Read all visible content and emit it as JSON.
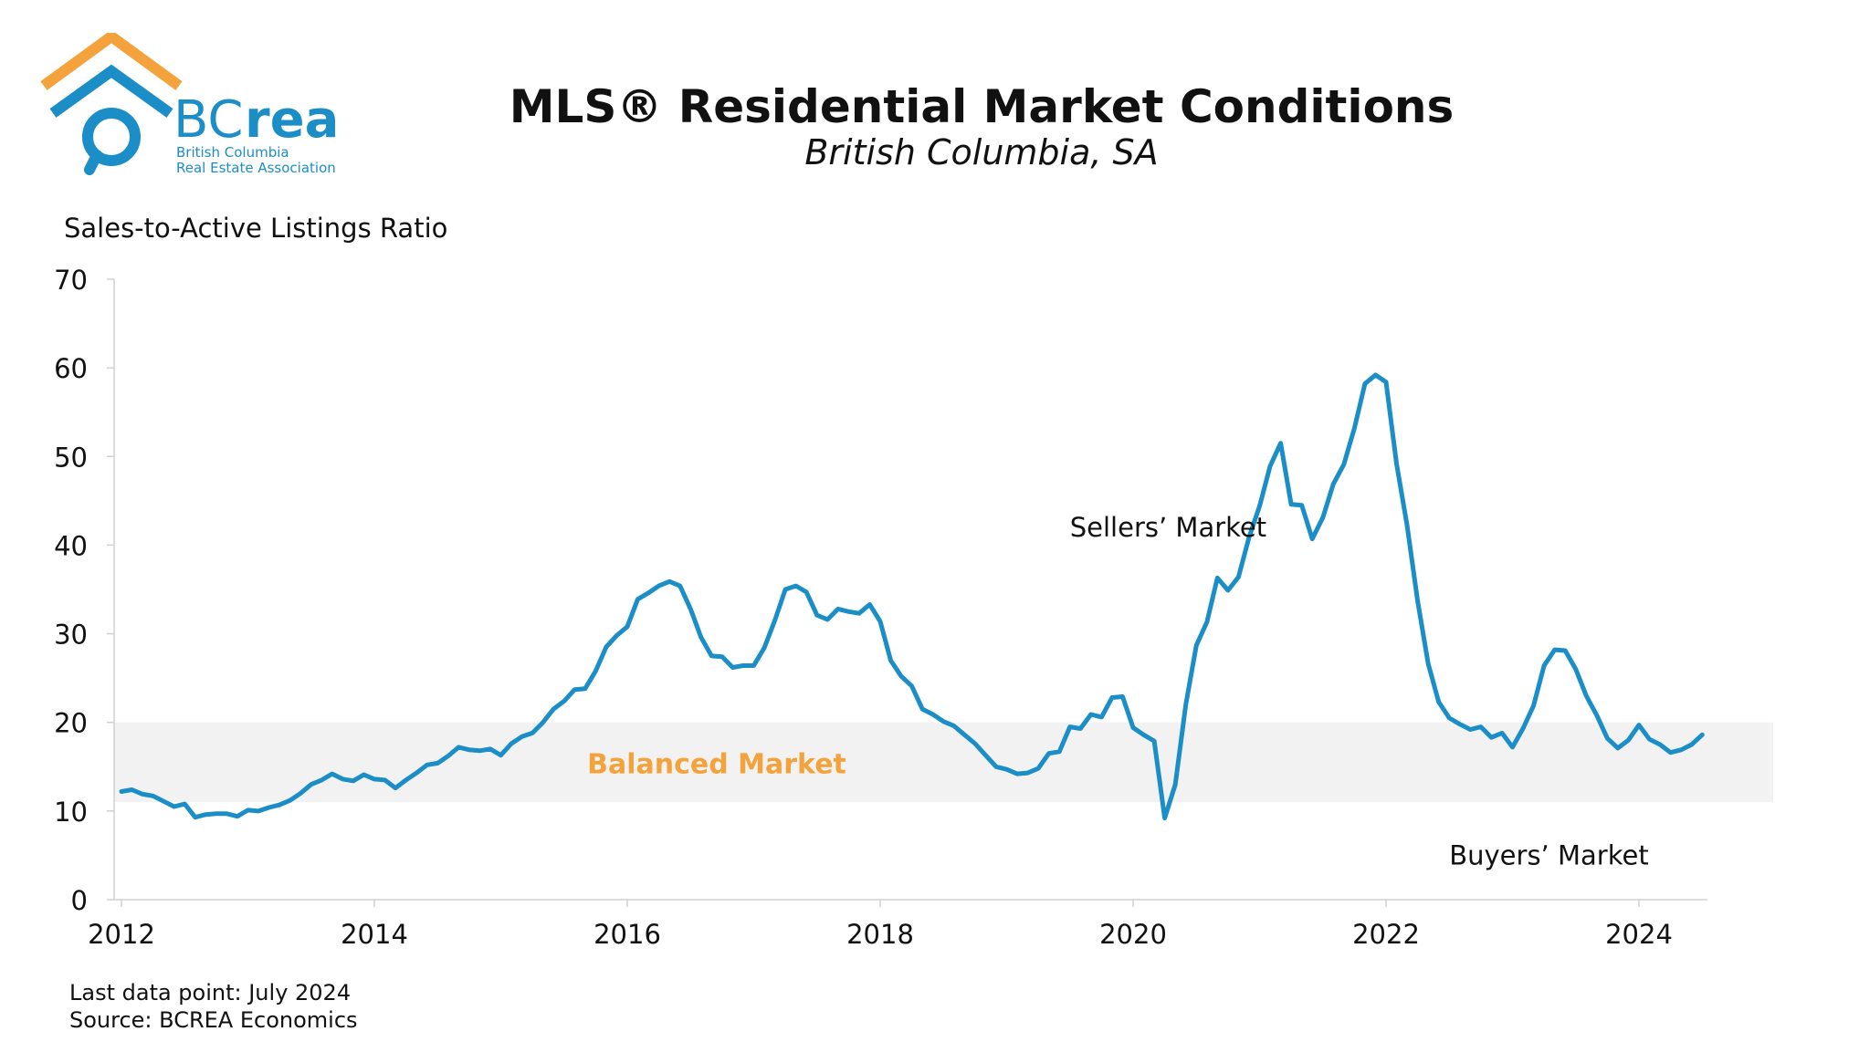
{
  "logo": {
    "brand_bc": "BC",
    "brand_rea": "rea",
    "line1": "British Columbia",
    "line2": "Real Estate Association",
    "colors": {
      "roof": "#f4a23b",
      "house": "#1b8ec8",
      "text": "#1b8ec8"
    },
    "icon": "house-speech-bubble-icon"
  },
  "footer": {
    "last_data_point": "Last data point: July 2024",
    "source": "Source: BCREA Economics"
  },
  "chart_data": {
    "type": "line",
    "title": "MLS® Residential Market Conditions",
    "subtitle": "British Columbia, SA",
    "ylabel": "Sales-to-Active Listings Ratio",
    "xlabel": "",
    "ylim": [
      0,
      70
    ],
    "yticks": [
      0,
      10,
      20,
      30,
      40,
      50,
      60,
      70
    ],
    "xlim": [
      2012,
      2024.75
    ],
    "xticks": [
      "2012",
      "2014",
      "2016",
      "2018",
      "2020",
      "2022",
      "2024"
    ],
    "grid": false,
    "band": {
      "label": "Balanced Market",
      "range": [
        11,
        20
      ],
      "color": "#f2f2f2",
      "label_color": "#f4a23b"
    },
    "annotations": [
      {
        "text": "Sellers’ Market",
        "x": 2019.5,
        "y": 42
      },
      {
        "text": "Buyers’ Market",
        "x": 2022.5,
        "y": 5
      }
    ],
    "line_color": "#1b8ec8",
    "series": [
      {
        "x_start": "2012-01",
        "frequency": "monthly",
        "values": [
          12.2,
          12.4,
          11.9,
          11.7,
          11.1,
          10.5,
          10.8,
          9.3,
          9.6,
          9.7,
          9.7,
          9.4,
          10.1,
          10.0,
          10.4,
          10.7,
          11.2,
          12.0,
          13.0,
          13.5,
          14.2,
          13.6,
          13.4,
          14.1,
          13.6,
          13.5,
          12.6,
          13.5,
          14.3,
          15.2,
          15.4,
          16.2,
          17.2,
          16.9,
          16.8,
          17.0,
          16.3,
          17.6,
          18.4,
          18.8,
          20.0,
          21.5,
          22.4,
          23.7,
          23.8,
          25.8,
          28.5,
          29.8,
          30.8,
          33.9,
          34.6,
          35.4,
          35.9,
          35.4,
          32.8,
          29.6,
          27.5,
          27.4,
          26.2,
          26.4,
          26.4,
          28.4,
          31.5,
          35.0,
          35.4,
          34.7,
          32.1,
          31.6,
          32.8,
          32.5,
          32.3,
          33.3,
          31.4,
          27.0,
          25.2,
          24.1,
          21.5,
          20.9,
          20.1,
          19.6,
          18.6,
          17.6,
          16.3,
          15.0,
          14.7,
          14.2,
          14.3,
          14.8,
          16.5,
          16.7,
          19.5,
          19.3,
          20.9,
          20.6,
          22.8,
          22.9,
          19.4,
          18.6,
          17.9,
          9.2,
          13.0,
          22.0,
          28.7,
          31.3,
          36.3,
          34.9,
          36.4,
          40.9,
          44.4,
          48.9,
          51.5,
          44.6,
          44.5,
          40.7,
          43.1,
          46.9,
          49.1,
          53.2,
          58.2,
          59.2,
          58.4,
          49.2,
          42.2,
          33.7,
          26.6,
          22.3,
          20.5,
          19.8,
          19.2,
          19.5,
          18.3,
          18.8,
          17.2,
          19.3,
          21.9,
          26.4,
          28.2,
          28.1,
          26.0,
          23.0,
          20.8,
          18.2,
          17.1,
          18.0,
          19.7,
          18.1,
          17.5,
          16.6,
          16.9,
          17.5,
          18.6
        ]
      }
    ]
  }
}
